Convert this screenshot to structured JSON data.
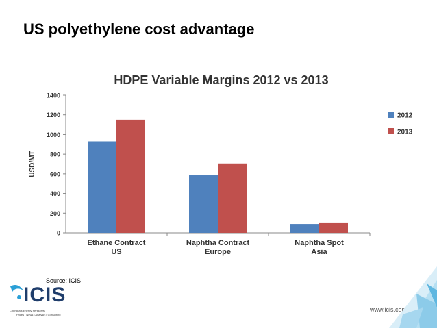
{
  "slide": {
    "title": "US polyethylene cost advantage",
    "source": "Source: ICIS",
    "url": "www.icis.com",
    "logo_text": "ICIS",
    "logo_line1": "Chemicals  Energy  Fertilizers",
    "logo_line2": "Prices | News | Analysis | Consulting"
  },
  "chart_data": {
    "type": "bar",
    "title": "HDPE Variable Margins 2012 vs 2013",
    "xlabel": "",
    "ylabel": "USD/MT",
    "ylim": [
      0,
      1400
    ],
    "yticks": [
      0,
      200,
      400,
      600,
      800,
      1000,
      1200,
      1400
    ],
    "categories": [
      [
        "Ethane Contract",
        "US"
      ],
      [
        "Naphtha Contract",
        "Europe"
      ],
      [
        "Naphtha Spot",
        "Asia"
      ]
    ],
    "series": [
      {
        "name": "2012",
        "color": "#4f81bd",
        "values": [
          930,
          585,
          90
        ]
      },
      {
        "name": "2013",
        "color": "#c0504d",
        "values": [
          1150,
          705,
          105
        ]
      }
    ],
    "grid": false,
    "legend": "right"
  }
}
